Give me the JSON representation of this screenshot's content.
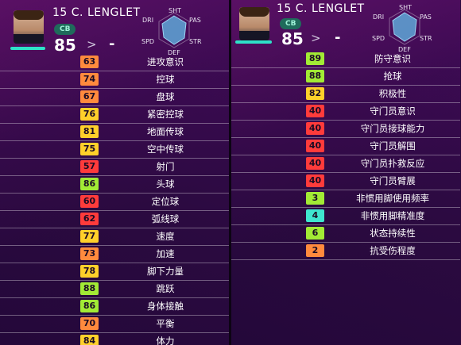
{
  "colors": {
    "red": "#ff3b3b",
    "orange": "#ff8a3d",
    "yellow": "#ffd02a",
    "green": "#a2ea35",
    "cyan": "#3fe6cf",
    "teal_bar": "#2ee0c8"
  },
  "player": {
    "name": "15 C. LENGLET",
    "position": "CB",
    "overall": "85",
    "arrow": ">",
    "target": "-"
  },
  "radar": {
    "labels": [
      "SHT",
      "PAS",
      "STR",
      "DEF",
      "SPD",
      "DRI"
    ]
  },
  "left_stats": [
    {
      "value": "63",
      "label": "进攻意识",
      "color": "orange"
    },
    {
      "value": "74",
      "label": "控球",
      "color": "orange"
    },
    {
      "value": "67",
      "label": "盘球",
      "color": "orange"
    },
    {
      "value": "76",
      "label": "紧密控球",
      "color": "yellow"
    },
    {
      "value": "81",
      "label": "地面传球",
      "color": "yellow"
    },
    {
      "value": "75",
      "label": "空中传球",
      "color": "yellow"
    },
    {
      "value": "57",
      "label": "射门",
      "color": "red"
    },
    {
      "value": "86",
      "label": "头球",
      "color": "green"
    },
    {
      "value": "60",
      "label": "定位球",
      "color": "red"
    },
    {
      "value": "62",
      "label": "弧线球",
      "color": "red"
    },
    {
      "value": "77",
      "label": "速度",
      "color": "yellow"
    },
    {
      "value": "73",
      "label": "加速",
      "color": "orange"
    },
    {
      "value": "78",
      "label": "脚下力量",
      "color": "yellow"
    },
    {
      "value": "88",
      "label": "跳跃",
      "color": "green"
    },
    {
      "value": "86",
      "label": "身体接触",
      "color": "green"
    },
    {
      "value": "70",
      "label": "平衡",
      "color": "orange"
    },
    {
      "value": "84",
      "label": "体力",
      "color": "yellow"
    }
  ],
  "right_stats": [
    {
      "value": "89",
      "label": "防守意识",
      "color": "green"
    },
    {
      "value": "88",
      "label": "抢球",
      "color": "green"
    },
    {
      "value": "82",
      "label": "积极性",
      "color": "yellow"
    },
    {
      "value": "40",
      "label": "守门员意识",
      "color": "red"
    },
    {
      "value": "40",
      "label": "守门员接球能力",
      "color": "red"
    },
    {
      "value": "40",
      "label": "守门员解围",
      "color": "red"
    },
    {
      "value": "40",
      "label": "守门员扑救反应",
      "color": "red"
    },
    {
      "value": "40",
      "label": "守门员臂展",
      "color": "red"
    },
    {
      "value": "3",
      "label": "非惯用脚使用频率",
      "color": "green"
    },
    {
      "value": "4",
      "label": "非惯用脚精准度",
      "color": "cyan"
    },
    {
      "value": "6",
      "label": "状态持续性",
      "color": "green"
    },
    {
      "value": "2",
      "label": "抗受伤程度",
      "color": "orange"
    }
  ]
}
